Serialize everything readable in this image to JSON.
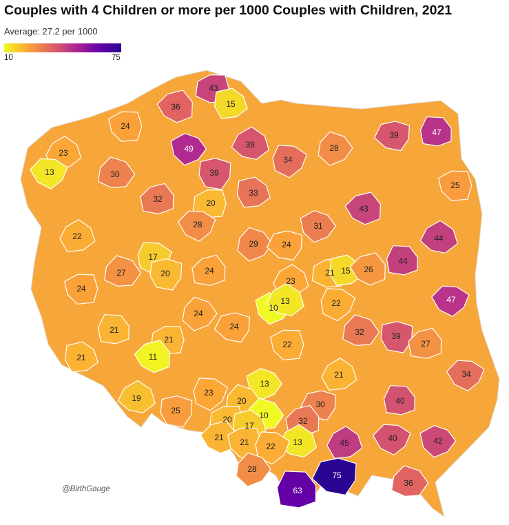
{
  "title": "Couples with 4 Children or more per 1000 Couples with Children, 2021",
  "subtitle": "Average: 27.2 per 1000",
  "legend": {
    "min_label": "10",
    "max_label": "75",
    "min": 10,
    "max": 75
  },
  "credit": "@BirthGauge",
  "colors": {
    "scale": [
      "#f0f921",
      "#fca636",
      "#e16462",
      "#b12a90",
      "#6a00a8",
      "#2a0593"
    ],
    "background": "#ffffff",
    "border": "#ffffff"
  },
  "chart_data": {
    "type": "choropleth",
    "regions": [
      {
        "value": 43
      },
      {
        "value": 15
      },
      {
        "value": 36
      },
      {
        "value": 24
      },
      {
        "value": 23
      },
      {
        "value": 13
      },
      {
        "value": 49
      },
      {
        "value": 39
      },
      {
        "value": 34
      },
      {
        "value": 28
      },
      {
        "value": 39
      },
      {
        "value": 47
      },
      {
        "value": 30
      },
      {
        "value": 39
      },
      {
        "value": 32
      },
      {
        "value": 20
      },
      {
        "value": 33
      },
      {
        "value": 43
      },
      {
        "value": 25
      },
      {
        "value": 22
      },
      {
        "value": 28
      },
      {
        "value": 31
      },
      {
        "value": 44
      },
      {
        "value": 17
      },
      {
        "value": 29
      },
      {
        "value": 24
      },
      {
        "value": 44
      },
      {
        "value": 27
      },
      {
        "value": 20
      },
      {
        "value": 24
      },
      {
        "value": 21
      },
      {
        "value": 15
      },
      {
        "value": 26
      },
      {
        "value": 24
      },
      {
        "value": 23
      },
      {
        "value": 47
      },
      {
        "value": 10
      },
      {
        "value": 13
      },
      {
        "value": 22
      },
      {
        "value": 24
      },
      {
        "value": 24
      },
      {
        "value": 21
      },
      {
        "value": 32
      },
      {
        "value": 39
      },
      {
        "value": 27
      },
      {
        "value": 21
      },
      {
        "value": 21
      },
      {
        "value": 11
      },
      {
        "value": 22
      },
      {
        "value": 21
      },
      {
        "value": 34
      },
      {
        "value": 13
      },
      {
        "value": 19
      },
      {
        "value": 23
      },
      {
        "value": 20
      },
      {
        "value": 30
      },
      {
        "value": 40
      },
      {
        "value": 10
      },
      {
        "value": 25
      },
      {
        "value": 32
      },
      {
        "value": 20
      },
      {
        "value": 17
      },
      {
        "value": 21
      },
      {
        "value": 21
      },
      {
        "value": 45
      },
      {
        "value": 40
      },
      {
        "value": 42
      },
      {
        "value": 13
      },
      {
        "value": 22
      },
      {
        "value": 28
      },
      {
        "value": 75
      },
      {
        "value": 63
      },
      {
        "value": 36
      }
    ]
  }
}
